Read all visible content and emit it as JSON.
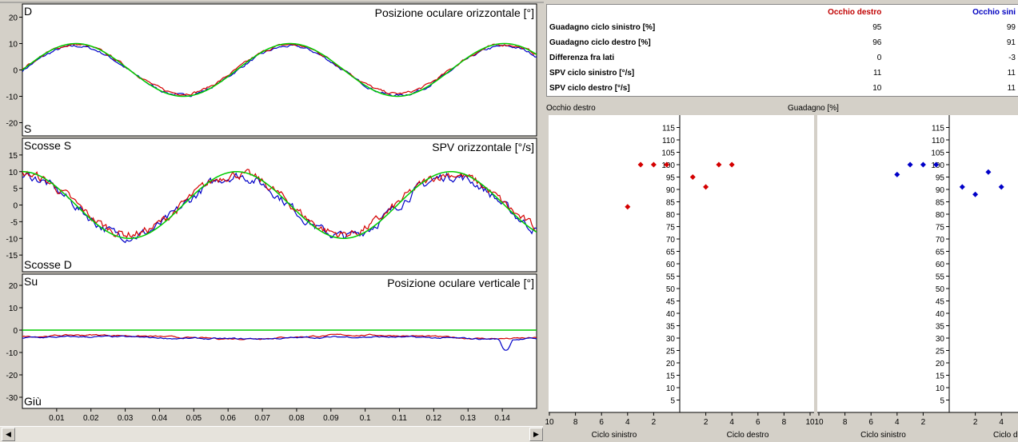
{
  "colors": {
    "red": "#d40000",
    "blue": "#0000c8",
    "green": "#00cc00"
  },
  "panel1": {
    "top_left": "D",
    "bottom_left": "S",
    "title": "Posizione oculare orizzontale [°]"
  },
  "panel2": {
    "top_left": "Scosse S",
    "bottom_left": "Scosse D",
    "title": "SPV  orizzontale [°/s]"
  },
  "panel3": {
    "top_left": "Su",
    "bottom_left": "Giù",
    "title": "Posizione oculare verticale [°]"
  },
  "x_ticks": [
    "0.01",
    "0.02",
    "0.03",
    "0.04",
    "0.05",
    "0.06",
    "0.07",
    "0.08",
    "0.09",
    "0.1",
    "0.11",
    "0.12",
    "0.13",
    "0.14"
  ],
  "scroll": {
    "left_icon": "arrow-left-icon",
    "right_icon": "arrow-right-icon",
    "left_glyph": "◀",
    "right_glyph": "▶"
  },
  "table": {
    "headers": [
      "",
      "Occhio destro",
      "Occhio sini"
    ],
    "rows": [
      {
        "label": "Guadagno ciclo sinistro [%]",
        "right": "95",
        "left": "99"
      },
      {
        "label": "Guadagno ciclo destro [%]",
        "right": "96",
        "left": "91"
      },
      {
        "label": "Differenza fra lati",
        "right": "0",
        "left": "-3"
      },
      {
        "label": "SPV ciclo sinistro [°/s]",
        "right": "11",
        "left": "11"
      },
      {
        "label": "SPV ciclo destro [°/s]",
        "right": "10",
        "left": "11"
      }
    ]
  },
  "gain_header": {
    "left": "Occhio destro",
    "center": "Guadagno [%]"
  },
  "gain_xlabels": [
    "Ciclo sinistro",
    "Ciclo destro",
    "Ciclo sinistro",
    "Ciclo destro"
  ],
  "chart_data": [
    {
      "type": "line",
      "title": "Posizione oculare orizzontale [°]",
      "ylim": [
        -25,
        25
      ],
      "yticks": [
        20,
        10,
        0,
        -10,
        -20
      ],
      "xlim": [
        0,
        0.15
      ],
      "series": [
        {
          "color": "green",
          "shape": "sine",
          "amplitude": 10,
          "period": 0.0625,
          "phase": 0.0
        }
      ]
    },
    {
      "type": "line",
      "title": "SPV  orizzontale [°/s]",
      "ylim": [
        -20,
        20
      ],
      "yticks": [
        15,
        10,
        5,
        0,
        -5,
        -10,
        -15
      ],
      "xlim": [
        0,
        0.15
      ],
      "series": [
        {
          "color": "green",
          "shape": "cosine",
          "amplitude": 10,
          "period": 0.0625,
          "phase": 0.0
        }
      ]
    },
    {
      "type": "line",
      "title": "Posizione oculare verticale [°]",
      "ylim": [
        -35,
        25
      ],
      "yticks": [
        20,
        10,
        0,
        -10,
        -20,
        -30
      ],
      "xlim": [
        0,
        0.15
      ],
      "series": [
        {
          "color": "green",
          "shape": "flat",
          "value": 0
        },
        {
          "color": "red",
          "shape": "flat",
          "value": -3
        },
        {
          "color": "blue",
          "shape": "flat",
          "value": -3.5
        }
      ]
    },
    {
      "type": "scatter",
      "title": "Guadagno [%]",
      "subtitle": "Occhio destro",
      "color": "red",
      "ylim": [
        0,
        120
      ],
      "yticks": [
        115,
        110,
        105,
        100,
        95,
        90,
        85,
        80,
        75,
        70,
        65,
        60,
        55,
        50,
        45,
        40,
        35,
        30,
        25,
        20,
        15,
        10,
        5
      ],
      "xticks_left": [
        "10",
        "8",
        "6",
        "4",
        "2"
      ],
      "xticks_right": [
        "2",
        "4",
        "6",
        "8",
        "10"
      ],
      "left": [
        {
          "x": 4,
          "y": 83
        },
        {
          "x": 3,
          "y": 100
        },
        {
          "x": 2,
          "y": 100
        },
        {
          "x": 1,
          "y": 100
        }
      ],
      "right": [
        {
          "x": 1,
          "y": 95
        },
        {
          "x": 2,
          "y": 91
        },
        {
          "x": 3,
          "y": 100
        },
        {
          "x": 4,
          "y": 100
        }
      ]
    },
    {
      "type": "scatter",
      "title": "Guadagno [%]",
      "color": "blue",
      "ylim": [
        0,
        120
      ],
      "yticks": [
        115,
        110,
        105,
        100,
        95,
        90,
        85,
        80,
        75,
        70,
        65,
        60,
        55,
        50,
        45,
        40,
        35,
        30,
        25,
        20,
        15,
        10,
        5
      ],
      "xticks_left": [
        "10",
        "8",
        "6",
        "4",
        "2"
      ],
      "xticks_right": [
        "2",
        "4"
      ],
      "left": [
        {
          "x": 4,
          "y": 96
        },
        {
          "x": 3,
          "y": 100
        },
        {
          "x": 2,
          "y": 100
        },
        {
          "x": 1,
          "y": 100
        }
      ],
      "right": [
        {
          "x": 1,
          "y": 91
        },
        {
          "x": 2,
          "y": 88
        },
        {
          "x": 3,
          "y": 97
        },
        {
          "x": 4,
          "y": 91
        }
      ]
    }
  ]
}
